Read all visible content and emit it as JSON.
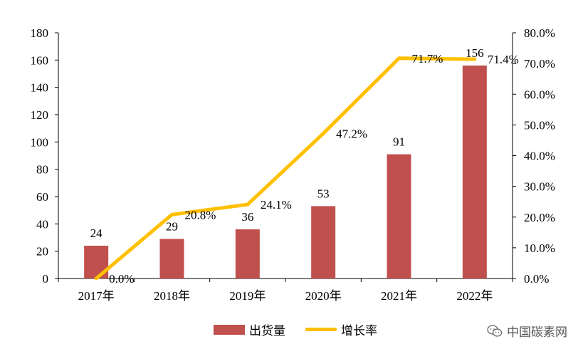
{
  "chart_data": {
    "type": "bar",
    "categories": [
      "2017年",
      "2018年",
      "2019年",
      "2020年",
      "2021年",
      "2022年"
    ],
    "series": [
      {
        "name": "出货量",
        "type": "bar",
        "axis": "left",
        "color": "#C0504D",
        "values": [
          24,
          29,
          36,
          53,
          91,
          156
        ],
        "labels": [
          "24",
          "29",
          "36",
          "53",
          "91",
          "156"
        ]
      },
      {
        "name": "增长率",
        "type": "line",
        "axis": "right",
        "color": "#FFC000",
        "values": [
          0.0,
          20.8,
          24.1,
          47.2,
          71.7,
          71.4
        ],
        "labels": [
          "0.0%",
          "20.8%",
          "24.1%",
          "47.2%",
          "71.7%",
          "71.4%"
        ]
      }
    ],
    "y_left": {
      "range": [
        0,
        180
      ],
      "ticks": [
        0,
        20,
        40,
        60,
        80,
        100,
        120,
        140,
        160,
        180
      ],
      "tick_labels": [
        "0",
        "20",
        "40",
        "60",
        "80",
        "100",
        "120",
        "140",
        "160",
        "180"
      ]
    },
    "y_right": {
      "range": [
        0,
        80
      ],
      "ticks": [
        0,
        10,
        20,
        30,
        40,
        50,
        60,
        70,
        80
      ],
      "tick_labels": [
        "0.0%",
        "10.0%",
        "20.0%",
        "30.0%",
        "40.0%",
        "50.0%",
        "60.0%",
        "70.0%",
        "80.0%"
      ]
    },
    "grid": false,
    "legend_position": "bottom"
  },
  "watermark": {
    "text": "中国碳素网",
    "icon": "wechat-icon"
  }
}
